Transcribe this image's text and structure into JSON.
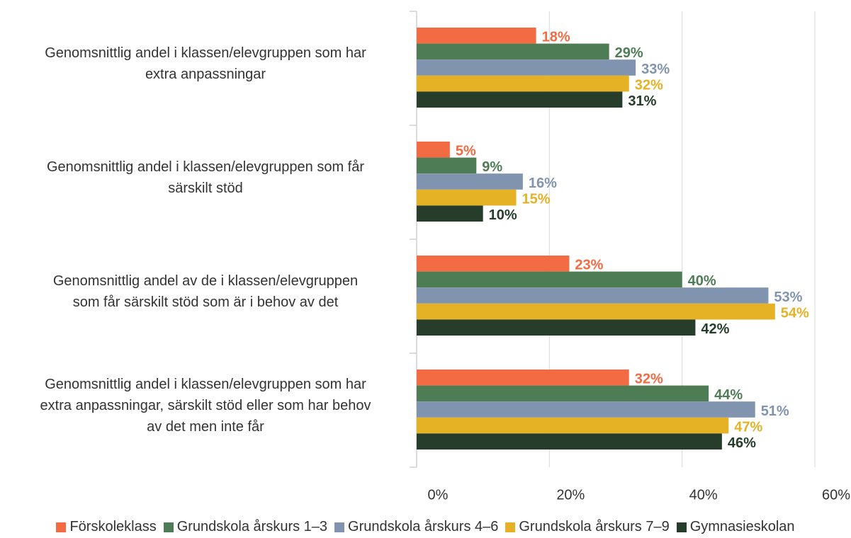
{
  "chart_data": {
    "type": "bar",
    "orientation": "horizontal",
    "categories": [
      [
        "Genomsnittlig andel i klassen/elevgruppen som har",
        "extra anpassningar"
      ],
      [
        "Genomsnittlig andel i klassen/elevgruppen som får",
        "särskilt stöd"
      ],
      [
        "Genomsnittlig andel av de i klassen/elevgruppen",
        "som får särskilt stöd som är i behov av det"
      ],
      [
        "Genomsnittlig andel i klassen/elevgruppen som har",
        "extra anpassningar, särskilt stöd eller som har behov",
        "av det men inte får"
      ]
    ],
    "series": [
      {
        "name": "Förskoleklass",
        "color": "#f26b43",
        "values": [
          18,
          5,
          23,
          32
        ],
        "value_labels": [
          "18%",
          "5%",
          "23%",
          "32%"
        ]
      },
      {
        "name": "Grundskola årskurs 1–3",
        "color": "#4e7c55",
        "values": [
          29,
          9,
          40,
          44
        ],
        "value_labels": [
          "29%",
          "9%",
          "40%",
          "44%"
        ]
      },
      {
        "name": "Grundskola årskurs 4–6",
        "color": "#8094b0",
        "values": [
          33,
          16,
          53,
          51
        ],
        "value_labels": [
          "33%",
          "16%",
          "53%",
          "51%"
        ]
      },
      {
        "name": "Grundskola årskurs 7–9",
        "color": "#e5b125",
        "values": [
          32,
          15,
          54,
          47
        ],
        "value_labels": [
          "32%",
          "15%",
          "54%",
          "47%"
        ]
      },
      {
        "name": "Gymnasieskolan",
        "color": "#253d2a",
        "values": [
          31,
          10,
          42,
          46
        ],
        "value_labels": [
          "31%",
          "10%",
          "42%",
          "46%"
        ]
      }
    ],
    "xlim": [
      0,
      60
    ],
    "xticks": [
      {
        "value": 0,
        "label": "0%"
      },
      {
        "value": 20,
        "label": "20%"
      },
      {
        "value": 40,
        "label": "40%"
      },
      {
        "value": 60,
        "label": "60%"
      }
    ],
    "grid": true,
    "legend": "bottom"
  }
}
